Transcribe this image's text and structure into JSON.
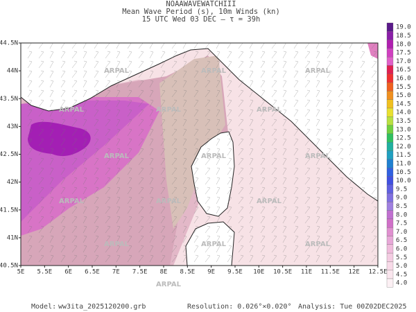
{
  "header": {
    "line1": "NOAAWAVEWATCHIII",
    "line2": "Mean Wave Period (s), 10m Winds (kn)",
    "line3": "15 UTC Wed 03 DEC  –  τ = 39h"
  },
  "map": {
    "lat_labels": [
      "44.5N",
      "44N",
      "43.5N",
      "43N",
      "42.5N",
      "42N",
      "41.5N",
      "41N",
      "40.5N"
    ],
    "lon_labels": [
      "5E",
      "5.5E",
      "6E",
      "6.5E",
      "7E",
      "7.5E",
      "8E",
      "8.5E",
      "9E",
      "9.5E",
      "10E",
      "10.5E",
      "11E",
      "11.5E",
      "12E",
      "12.5E"
    ],
    "watermark": "ARPAL"
  },
  "colorbar": {
    "labels": [
      "19.0",
      "18.5",
      "18.0",
      "17.5",
      "17.0",
      "16.5",
      "16.0",
      "15.5",
      "15.0",
      "14.5",
      "14.0",
      "13.5",
      "13.0",
      "12.5",
      "12.0",
      "11.5",
      "11.0",
      "10.5",
      "10.0",
      "9.5",
      "9.0",
      "8.5",
      "8.0",
      "7.5",
      "7.0",
      "6.5",
      "6.0",
      "5.5",
      "5.0",
      "4.5",
      "4.0"
    ],
    "colors": [
      "#5a1a8a",
      "#8a1fa8",
      "#b020b0",
      "#d040c0",
      "#e060c8",
      "#e02050",
      "#f03030",
      "#f06020",
      "#f09020",
      "#f0c020",
      "#e8e030",
      "#b8e040",
      "#70d040",
      "#30c060",
      "#20b0a0",
      "#20a0c0",
      "#2080d0",
      "#3060e0",
      "#4050e0",
      "#6060e0",
      "#8070e0",
      "#a080e0",
      "#c070d0",
      "#d070c8",
      "#e090d0",
      "#e8a8d8",
      "#f0bcdc",
      "#f4cce2",
      "#f8dae8",
      "#fae6ee",
      "#fcf0f4"
    ]
  },
  "footer": {
    "model_label": "Model:",
    "model": "ww3ita_2025120200.grb",
    "resolution": "Resolution: 0.026°×0.020°",
    "analysis": "Analysis: Tue 00Z02DEC2025"
  }
}
